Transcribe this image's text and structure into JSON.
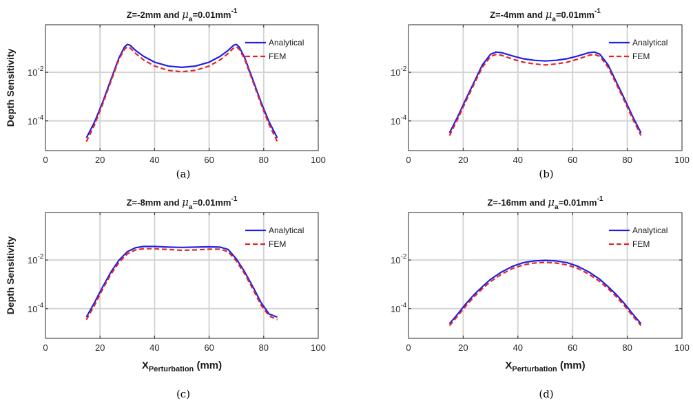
{
  "chart_data": [
    {
      "type": "line",
      "panel": "(a)",
      "title_main": "Z=-2mm and ",
      "title_mu": "μ",
      "title_mu_sub": "a",
      "title_tail": "=0.01mm",
      "title_exp": "-1",
      "ylabel": "Depth Sensitivity",
      "xlabel": "",
      "xlabel_sub": "",
      "xlabel_tail": "",
      "xlim": [
        0,
        100
      ],
      "ylim": [
        6e-06,
        0.9
      ],
      "yscale": "log",
      "xticks": [
        "0",
        "20",
        "40",
        "60",
        "80",
        "100"
      ],
      "yticks": [
        {
          "base": "10",
          "exp": "-2",
          "value": 0.01
        },
        {
          "base": "10",
          "exp": "-4",
          "value": 0.0001
        }
      ],
      "grid": true,
      "legend": "top-right",
      "x": [
        15,
        18,
        21,
        24,
        27,
        29,
        30,
        31,
        33,
        36,
        40,
        45,
        50,
        55,
        60,
        64,
        67,
        69,
        70,
        71,
        73,
        76,
        79,
        82,
        85
      ],
      "series": [
        {
          "name": "Analytical",
          "values": [
            2e-05,
            9e-05,
            0.0006,
            0.005,
            0.04,
            0.11,
            0.14,
            0.13,
            0.08,
            0.045,
            0.026,
            0.018,
            0.016,
            0.018,
            0.026,
            0.045,
            0.08,
            0.13,
            0.14,
            0.11,
            0.04,
            0.005,
            0.0006,
            9e-05,
            2e-05
          ],
          "color": "#1f1fe6",
          "dash": "solid"
        },
        {
          "name": "FEM",
          "values": [
            1.4e-05,
            7e-05,
            0.0005,
            0.0042,
            0.035,
            0.09,
            0.11,
            0.1,
            0.06,
            0.032,
            0.018,
            0.012,
            0.0105,
            0.012,
            0.018,
            0.032,
            0.06,
            0.1,
            0.11,
            0.09,
            0.035,
            0.0042,
            0.0005,
            7e-05,
            1.4e-05
          ],
          "color": "#e62222",
          "dash": "dashed"
        }
      ]
    },
    {
      "type": "line",
      "panel": "(b)",
      "title_main": "Z=-4mm and ",
      "title_mu": "μ",
      "title_mu_sub": "a",
      "title_tail": "=0.01mm",
      "title_exp": "-1",
      "ylabel": "",
      "xlabel": "",
      "xlabel_sub": "",
      "xlabel_tail": "",
      "xlim": [
        0,
        100
      ],
      "ylim": [
        6e-06,
        0.9
      ],
      "yscale": "log",
      "xticks": [
        "0",
        "20",
        "40",
        "60",
        "80",
        "100"
      ],
      "yticks": [
        {
          "base": "10",
          "exp": "-2",
          "value": 0.01
        },
        {
          "base": "10",
          "exp": "-4",
          "value": 0.0001
        }
      ],
      "grid": true,
      "legend": "top-right",
      "x": [
        15,
        18,
        21,
        24,
        27,
        30,
        32,
        34,
        38,
        42,
        46,
        50,
        54,
        58,
        62,
        66,
        68,
        70,
        73,
        76,
        79,
        82,
        85
      ],
      "series": [
        {
          "name": "Analytical",
          "values": [
            3.2e-05,
            0.00015,
            0.0008,
            0.004,
            0.02,
            0.055,
            0.068,
            0.064,
            0.047,
            0.036,
            0.031,
            0.029,
            0.031,
            0.036,
            0.047,
            0.064,
            0.068,
            0.055,
            0.02,
            0.004,
            0.0008,
            0.00015,
            3.2e-05
          ],
          "color": "#1f1fe6",
          "dash": "solid"
        },
        {
          "name": "FEM",
          "values": [
            2.5e-05,
            0.00012,
            0.00065,
            0.0033,
            0.016,
            0.045,
            0.054,
            0.05,
            0.035,
            0.026,
            0.022,
            0.02,
            0.022,
            0.026,
            0.035,
            0.05,
            0.054,
            0.045,
            0.016,
            0.0033,
            0.00065,
            0.00012,
            2.5e-05
          ],
          "color": "#e62222",
          "dash": "dashed"
        }
      ]
    },
    {
      "type": "line",
      "panel": "(c)",
      "title_main": "Z=-8mm and ",
      "title_mu": "μ",
      "title_mu_sub": "a",
      "title_tail": "=0.01mm",
      "title_exp": "-1",
      "ylabel": "Depth Sensitivity",
      "xlabel": "X",
      "xlabel_sub": "Perturbation",
      "xlabel_tail": " (mm)",
      "xlim": [
        0,
        100
      ],
      "ylim": [
        6e-06,
        0.9
      ],
      "yscale": "log",
      "xticks": [
        "0",
        "20",
        "40",
        "60",
        "80",
        "100"
      ],
      "yticks": [
        {
          "base": "10",
          "exp": "-2",
          "value": 0.01
        },
        {
          "base": "10",
          "exp": "-4",
          "value": 0.0001
        }
      ],
      "grid": true,
      "legend": "top-right",
      "x": [
        15,
        18,
        21,
        24,
        27,
        30,
        33,
        36,
        40,
        45,
        50,
        55,
        60,
        64,
        67,
        70,
        73,
        76,
        79,
        82,
        85
      ],
      "series": [
        {
          "name": "Analytical",
          "values": [
            4.5e-05,
            0.00018,
            0.0008,
            0.0032,
            0.01,
            0.022,
            0.032,
            0.036,
            0.036,
            0.034,
            0.033,
            0.034,
            0.035,
            0.034,
            0.027,
            0.011,
            0.0033,
            0.0008,
            0.00018,
            6e-05,
            4.5e-05
          ],
          "color": "#1f1fe6",
          "dash": "solid"
        },
        {
          "name": "FEM",
          "values": [
            3.5e-05,
            0.00014,
            0.00065,
            0.0026,
            0.008,
            0.018,
            0.026,
            0.029,
            0.029,
            0.027,
            0.025,
            0.026,
            0.028,
            0.028,
            0.022,
            0.009,
            0.0027,
            0.00065,
            0.00014,
            5e-05,
            3.5e-05
          ],
          "color": "#e62222",
          "dash": "dashed"
        }
      ]
    },
    {
      "type": "line",
      "panel": "(d)",
      "title_main": "Z=-16mm and ",
      "title_mu": "μ",
      "title_mu_sub": "a",
      "title_tail": "=0.01mm",
      "title_exp": "-1",
      "ylabel": "",
      "xlabel": "X",
      "xlabel_sub": "Perturbation",
      "xlabel_tail": " (mm)",
      "xlim": [
        0,
        100
      ],
      "ylim": [
        6e-06,
        0.9
      ],
      "yscale": "log",
      "xticks": [
        "0",
        "20",
        "40",
        "60",
        "80",
        "100"
      ],
      "yticks": [
        {
          "base": "10",
          "exp": "-2",
          "value": 0.01
        },
        {
          "base": "10",
          "exp": "-4",
          "value": 0.0001
        }
      ],
      "grid": true,
      "legend": "top-right",
      "x": [
        15,
        18,
        21,
        24,
        27,
        30,
        34,
        38,
        42,
        46,
        50,
        54,
        58,
        62,
        66,
        70,
        73,
        76,
        79,
        82,
        85
      ],
      "series": [
        {
          "name": "Analytical",
          "values": [
            2.4e-05,
            6e-05,
            0.00016,
            0.00038,
            0.0008,
            0.0016,
            0.0032,
            0.0055,
            0.0078,
            0.0092,
            0.0097,
            0.0092,
            0.0078,
            0.0055,
            0.0032,
            0.0016,
            0.0008,
            0.00038,
            0.00016,
            6e-05,
            2.4e-05
          ],
          "color": "#1f1fe6",
          "dash": "solid"
        },
        {
          "name": "FEM",
          "values": [
            2e-05,
            5e-05,
            0.00013,
            0.00031,
            0.00066,
            0.0013,
            0.0026,
            0.0045,
            0.0063,
            0.0075,
            0.008,
            0.0075,
            0.0063,
            0.0045,
            0.0026,
            0.0013,
            0.00066,
            0.00031,
            0.00013,
            5e-05,
            2e-05
          ],
          "color": "#e62222",
          "dash": "dashed"
        }
      ]
    }
  ]
}
